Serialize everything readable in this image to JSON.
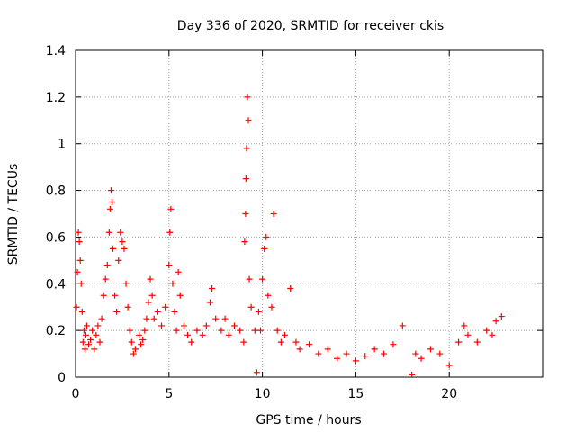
{
  "chart_data": {
    "type": "scatter",
    "title": "Day 336 of 2020, SRMTID for receiver ckis",
    "xlabel": "GPS time / hours",
    "ylabel": "SRMTID / TECUs",
    "xlim": [
      0,
      25
    ],
    "ylim": [
      0,
      1.4
    ],
    "x_ticks": [
      "0",
      "5",
      "10",
      "15",
      "20"
    ],
    "y_ticks": [
      "0",
      "0.2",
      "0.4",
      "0.6",
      "0.8",
      "1",
      "1.2",
      "1.4"
    ],
    "grid": true,
    "marker": "+",
    "series": [
      {
        "name": "SRMTID",
        "color": "#ff0000",
        "points": [
          [
            0.05,
            0.3
          ],
          [
            0.1,
            0.45
          ],
          [
            0.15,
            0.62
          ],
          [
            0.2,
            0.58
          ],
          [
            0.25,
            0.5
          ],
          [
            0.3,
            0.4
          ],
          [
            0.35,
            0.28
          ],
          [
            0.4,
            0.15
          ],
          [
            0.45,
            0.2
          ],
          [
            0.5,
            0.12
          ],
          [
            0.55,
            0.18
          ],
          [
            0.6,
            0.22
          ],
          [
            0.7,
            0.14
          ],
          [
            0.8,
            0.16
          ],
          [
            0.9,
            0.2
          ],
          [
            1.0,
            0.12
          ],
          [
            1.1,
            0.18
          ],
          [
            1.2,
            0.22
          ],
          [
            1.3,
            0.15
          ],
          [
            1.4,
            0.25
          ],
          [
            1.5,
            0.35
          ],
          [
            1.6,
            0.42
          ],
          [
            1.7,
            0.48
          ],
          [
            1.8,
            0.62
          ],
          [
            1.85,
            0.72
          ],
          [
            1.9,
            0.8
          ],
          [
            1.95,
            0.75
          ],
          [
            2.0,
            0.55
          ],
          [
            2.1,
            0.35
          ],
          [
            2.2,
            0.28
          ],
          [
            2.3,
            0.5
          ],
          [
            2.4,
            0.62
          ],
          [
            2.5,
            0.58
          ],
          [
            2.6,
            0.55
          ],
          [
            2.7,
            0.4
          ],
          [
            2.8,
            0.3
          ],
          [
            2.9,
            0.2
          ],
          [
            3.0,
            0.15
          ],
          [
            3.1,
            0.1
          ],
          [
            3.2,
            0.12
          ],
          [
            3.4,
            0.18
          ],
          [
            3.5,
            0.14
          ],
          [
            3.6,
            0.16
          ],
          [
            3.7,
            0.2
          ],
          [
            3.8,
            0.25
          ],
          [
            3.9,
            0.32
          ],
          [
            4.0,
            0.42
          ],
          [
            4.1,
            0.35
          ],
          [
            4.2,
            0.25
          ],
          [
            4.4,
            0.28
          ],
          [
            4.6,
            0.22
          ],
          [
            4.8,
            0.3
          ],
          [
            5.0,
            0.48
          ],
          [
            5.05,
            0.62
          ],
          [
            5.1,
            0.72
          ],
          [
            5.2,
            0.4
          ],
          [
            5.3,
            0.28
          ],
          [
            5.4,
            0.2
          ],
          [
            5.5,
            0.45
          ],
          [
            5.6,
            0.35
          ],
          [
            5.8,
            0.22
          ],
          [
            6.0,
            0.18
          ],
          [
            6.2,
            0.15
          ],
          [
            6.5,
            0.2
          ],
          [
            6.8,
            0.18
          ],
          [
            7.0,
            0.22
          ],
          [
            7.2,
            0.32
          ],
          [
            7.3,
            0.38
          ],
          [
            7.5,
            0.25
          ],
          [
            7.8,
            0.2
          ],
          [
            8.0,
            0.25
          ],
          [
            8.2,
            0.18
          ],
          [
            8.5,
            0.22
          ],
          [
            8.8,
            0.2
          ],
          [
            9.0,
            0.15
          ],
          [
            9.05,
            0.58
          ],
          [
            9.1,
            0.7
          ],
          [
            9.12,
            0.85
          ],
          [
            9.15,
            0.98
          ],
          [
            9.2,
            1.2
          ],
          [
            9.25,
            1.1
          ],
          [
            9.3,
            0.42
          ],
          [
            9.4,
            0.3
          ],
          [
            9.6,
            0.2
          ],
          [
            9.7,
            0.02
          ],
          [
            9.8,
            0.28
          ],
          [
            9.9,
            0.2
          ],
          [
            10.0,
            0.42
          ],
          [
            10.1,
            0.55
          ],
          [
            10.2,
            0.6
          ],
          [
            10.3,
            0.35
          ],
          [
            10.5,
            0.3
          ],
          [
            10.6,
            0.7
          ],
          [
            10.8,
            0.2
          ],
          [
            11.0,
            0.15
          ],
          [
            11.2,
            0.18
          ],
          [
            11.5,
            0.38
          ],
          [
            11.8,
            0.15
          ],
          [
            12.0,
            0.12
          ],
          [
            12.5,
            0.14
          ],
          [
            13.0,
            0.1
          ],
          [
            13.5,
            0.12
          ],
          [
            14.0,
            0.08
          ],
          [
            14.5,
            0.1
          ],
          [
            15.0,
            0.07
          ],
          [
            15.5,
            0.09
          ],
          [
            16.0,
            0.12
          ],
          [
            16.5,
            0.1
          ],
          [
            17.0,
            0.14
          ],
          [
            17.5,
            0.22
          ],
          [
            18.0,
            0.01
          ],
          [
            18.2,
            0.1
          ],
          [
            18.5,
            0.08
          ],
          [
            19.0,
            0.12
          ],
          [
            19.5,
            0.1
          ],
          [
            20.0,
            0.05
          ],
          [
            20.5,
            0.15
          ],
          [
            20.8,
            0.22
          ],
          [
            21.0,
            0.18
          ],
          [
            21.5,
            0.15
          ],
          [
            22.0,
            0.2
          ],
          [
            22.3,
            0.18
          ],
          [
            22.5,
            0.24
          ],
          [
            22.8,
            0.26
          ]
        ]
      }
    ]
  }
}
